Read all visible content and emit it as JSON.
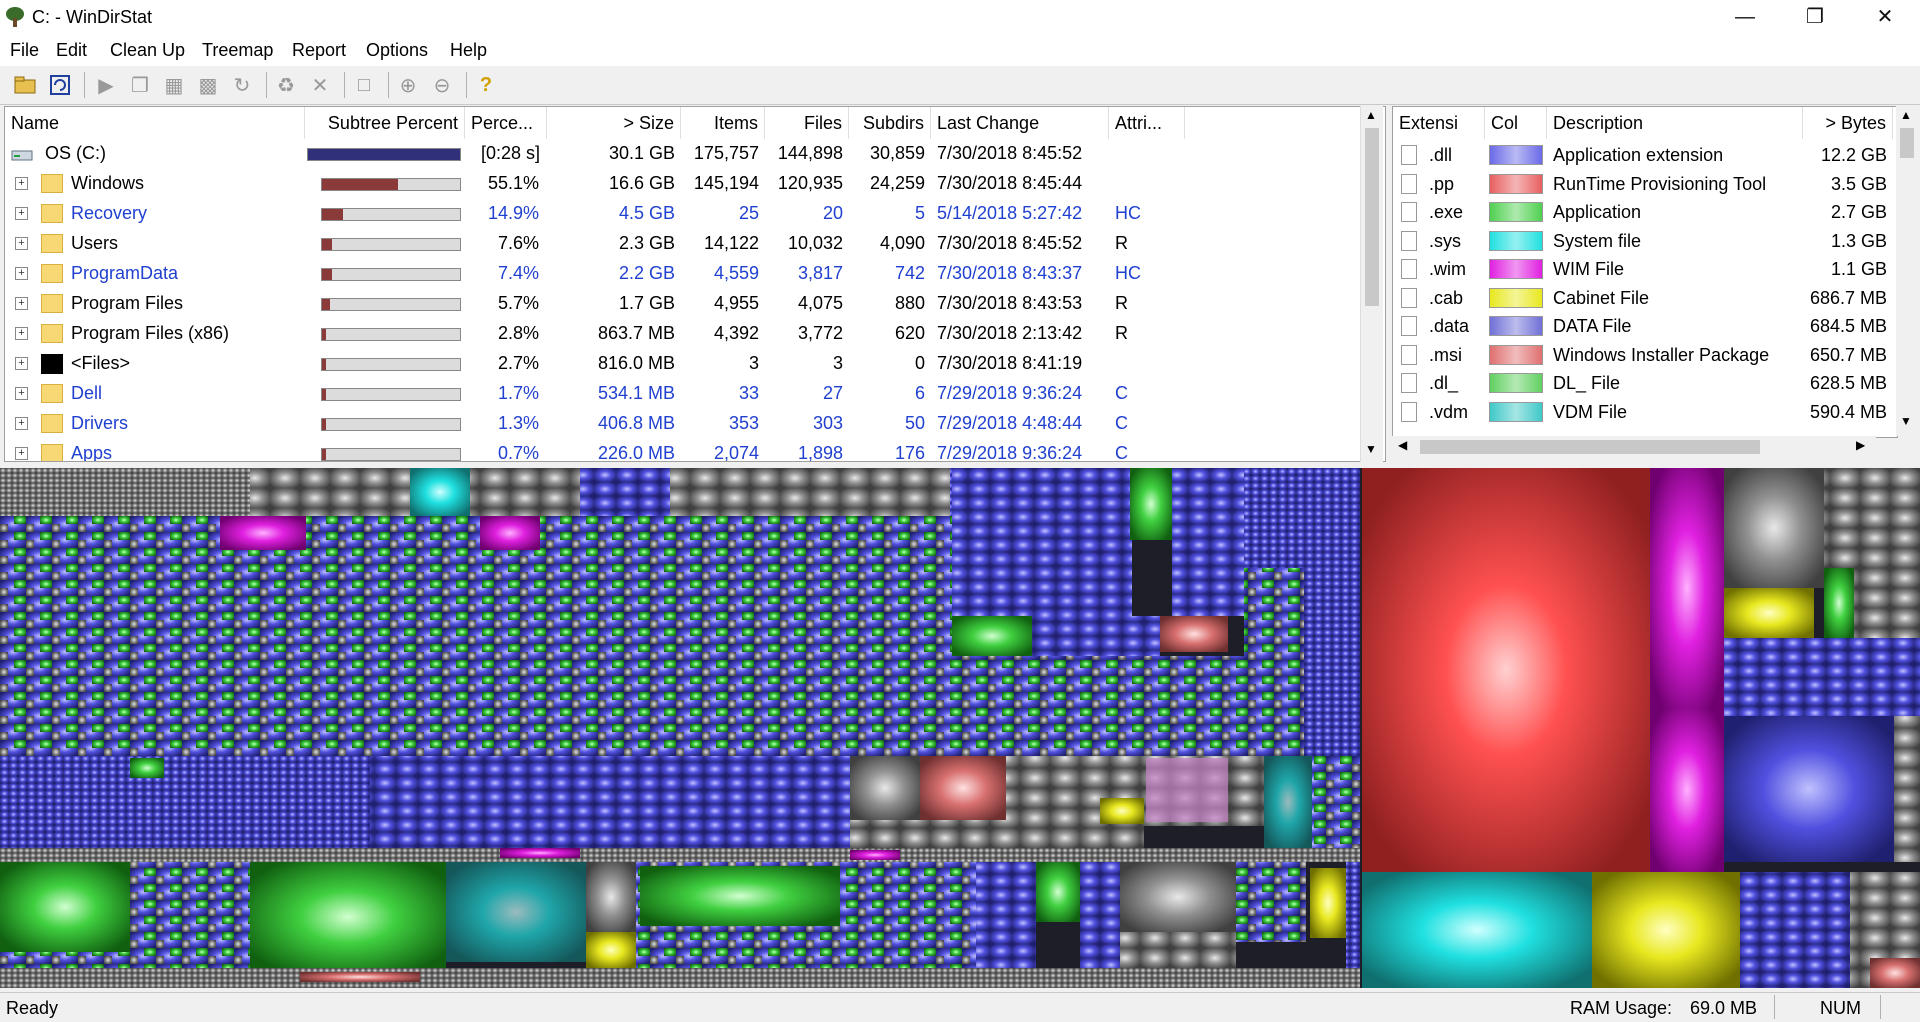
{
  "window": {
    "title": "C: - WinDirStat"
  },
  "menu": [
    "File",
    "Edit",
    "Clean Up",
    "Treemap",
    "Report",
    "Options",
    "Help"
  ],
  "tree": {
    "columns": [
      "Name",
      "Subtree Percent",
      "Perce...",
      "> Size",
      "Items",
      "Files",
      "Subdirs",
      "Last Change",
      "Attri..."
    ],
    "root": {
      "name": "OS (C:)",
      "percent": "[0:28 s]",
      "size": "30.1 GB",
      "items": "175,757",
      "files": "144,898",
      "subdirs": "30,859",
      "last_change": "7/30/2018 8:45:52",
      "attr": "",
      "fill": 1.0
    },
    "rows": [
      {
        "name": "Windows",
        "percent": "55.1%",
        "size": "16.6 GB",
        "items": "145,194",
        "files": "120,935",
        "subdirs": "24,259",
        "last_change": "7/30/2018 8:45:44",
        "attr": "",
        "fill": 0.551,
        "blue": false,
        "icon": "folder"
      },
      {
        "name": "Recovery",
        "percent": "14.9%",
        "size": "4.5 GB",
        "items": "25",
        "files": "20",
        "subdirs": "5",
        "last_change": "5/14/2018 5:27:42",
        "attr": "HC",
        "fill": 0.149,
        "blue": true,
        "icon": "folder"
      },
      {
        "name": "Users",
        "percent": "7.6%",
        "size": "2.3 GB",
        "items": "14,122",
        "files": "10,032",
        "subdirs": "4,090",
        "last_change": "7/30/2018 8:45:52",
        "attr": "R",
        "fill": 0.076,
        "blue": false,
        "icon": "folder"
      },
      {
        "name": "ProgramData",
        "percent": "7.4%",
        "size": "2.2 GB",
        "items": "4,559",
        "files": "3,817",
        "subdirs": "742",
        "last_change": "7/30/2018 8:43:37",
        "attr": "HC",
        "fill": 0.074,
        "blue": true,
        "icon": "folder"
      },
      {
        "name": "Program Files",
        "percent": "5.7%",
        "size": "1.7 GB",
        "items": "4,955",
        "files": "4,075",
        "subdirs": "880",
        "last_change": "7/30/2018 8:43:53",
        "attr": "R",
        "fill": 0.057,
        "blue": false,
        "icon": "folder"
      },
      {
        "name": "Program Files (x86)",
        "percent": "2.8%",
        "size": "863.7 MB",
        "items": "4,392",
        "files": "3,772",
        "subdirs": "620",
        "last_change": "7/30/2018 2:13:42",
        "attr": "R",
        "fill": 0.028,
        "blue": false,
        "icon": "folder"
      },
      {
        "name": "<Files>",
        "percent": "2.7%",
        "size": "816.0 MB",
        "items": "3",
        "files": "3",
        "subdirs": "0",
        "last_change": "7/30/2018 8:41:19",
        "attr": "",
        "fill": 0.027,
        "blue": false,
        "icon": "files"
      },
      {
        "name": "Dell",
        "percent": "1.7%",
        "size": "534.1 MB",
        "items": "33",
        "files": "27",
        "subdirs": "6",
        "last_change": "7/29/2018 9:36:24",
        "attr": "C",
        "fill": 0.017,
        "blue": true,
        "icon": "folder"
      },
      {
        "name": "Drivers",
        "percent": "1.3%",
        "size": "406.8 MB",
        "items": "353",
        "files": "303",
        "subdirs": "50",
        "last_change": "7/29/2018 4:48:44",
        "attr": "C",
        "fill": 0.013,
        "blue": true,
        "icon": "folder"
      },
      {
        "name": "Apps",
        "percent": "0.7%",
        "size": "226.0 MB",
        "items": "2,074",
        "files": "1,898",
        "subdirs": "176",
        "last_change": "7/29/2018 9:36:24",
        "attr": "C",
        "fill": 0.007,
        "blue": true,
        "icon": "folder"
      }
    ]
  },
  "extensions": {
    "columns": [
      "Extensi",
      "Col",
      "Description",
      "> Bytes"
    ],
    "rows": [
      {
        "ext": ".dll",
        "color": "#6a6ae8",
        "description": "Application extension",
        "bytes": "12.2 GB"
      },
      {
        "ext": ".pp",
        "color": "#e86060",
        "description": "RunTime Provisioning Tool",
        "bytes": "3.5 GB"
      },
      {
        "ext": ".exe",
        "color": "#50d050",
        "description": "Application",
        "bytes": "2.7 GB"
      },
      {
        "ext": ".sys",
        "color": "#20e0e0",
        "description": "System file",
        "bytes": "1.3 GB"
      },
      {
        "ext": ".wim",
        "color": "#e020e0",
        "description": "WIM File",
        "bytes": "1.1 GB"
      },
      {
        "ext": ".cab",
        "color": "#e8e820",
        "description": "Cabinet File",
        "bytes": "686.7 MB"
      },
      {
        "ext": ".data",
        "color": "#7070d8",
        "description": "DATA File",
        "bytes": "684.5 MB"
      },
      {
        "ext": ".msi",
        "color": "#e07070",
        "description": "Windows Installer Package",
        "bytes": "650.7 MB"
      },
      {
        "ext": ".dl_",
        "color": "#60d060",
        "description": "DL_ File",
        "bytes": "628.5 MB"
      },
      {
        "ext": ".vdm",
        "color": "#40c8c8",
        "description": "VDM File",
        "bytes": "590.4 MB"
      }
    ]
  },
  "status": {
    "left": "Ready",
    "ram_label": "RAM Usage:",
    "ram_value": "69.0 MB",
    "num": "NUM"
  }
}
